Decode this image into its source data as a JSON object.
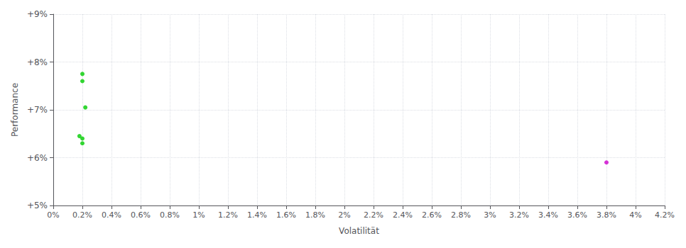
{
  "chart_data": {
    "type": "scatter",
    "xlabel": "Volatilität",
    "ylabel": "Performance",
    "xlim": [
      0.0,
      0.042
    ],
    "ylim": [
      0.05,
      0.09
    ],
    "xticks": [
      {
        "value": 0.0,
        "label": "0%"
      },
      {
        "value": 0.002,
        "label": "0.2%"
      },
      {
        "value": 0.004,
        "label": "0.4%"
      },
      {
        "value": 0.006,
        "label": "0.6%"
      },
      {
        "value": 0.008,
        "label": "0.8%"
      },
      {
        "value": 0.01,
        "label": "1%"
      },
      {
        "value": 0.012,
        "label": "1.2%"
      },
      {
        "value": 0.014,
        "label": "1.4%"
      },
      {
        "value": 0.016,
        "label": "1.6%"
      },
      {
        "value": 0.018,
        "label": "1.8%"
      },
      {
        "value": 0.02,
        "label": "2%"
      },
      {
        "value": 0.022,
        "label": "2.2%"
      },
      {
        "value": 0.024,
        "label": "2.4%"
      },
      {
        "value": 0.026,
        "label": "2.6%"
      },
      {
        "value": 0.028,
        "label": "2.8%"
      },
      {
        "value": 0.03,
        "label": "3%"
      },
      {
        "value": 0.032,
        "label": "3.2%"
      },
      {
        "value": 0.034,
        "label": "3.4%"
      },
      {
        "value": 0.036,
        "label": "3.6%"
      },
      {
        "value": 0.038,
        "label": "3.8%"
      },
      {
        "value": 0.04,
        "label": "4%"
      },
      {
        "value": 0.042,
        "label": "4.2%"
      }
    ],
    "yticks": [
      {
        "value": 0.05,
        "label": "+5%"
      },
      {
        "value": 0.06,
        "label": "+6%"
      },
      {
        "value": 0.07,
        "label": "+7%"
      },
      {
        "value": 0.08,
        "label": "+8%"
      },
      {
        "value": 0.09,
        "label": "+9%"
      }
    ],
    "grid": true,
    "series": [
      {
        "color": "#00cc00",
        "x": [
          0.002,
          0.002,
          0.0022,
          0.0018,
          0.002,
          0.002
        ],
        "values": [
          0.0775,
          0.076,
          0.0705,
          0.0645,
          0.064,
          0.063
        ]
      },
      {
        "color": "#cc00cc",
        "x": [
          0.038
        ],
        "values": [
          0.059
        ]
      }
    ]
  }
}
